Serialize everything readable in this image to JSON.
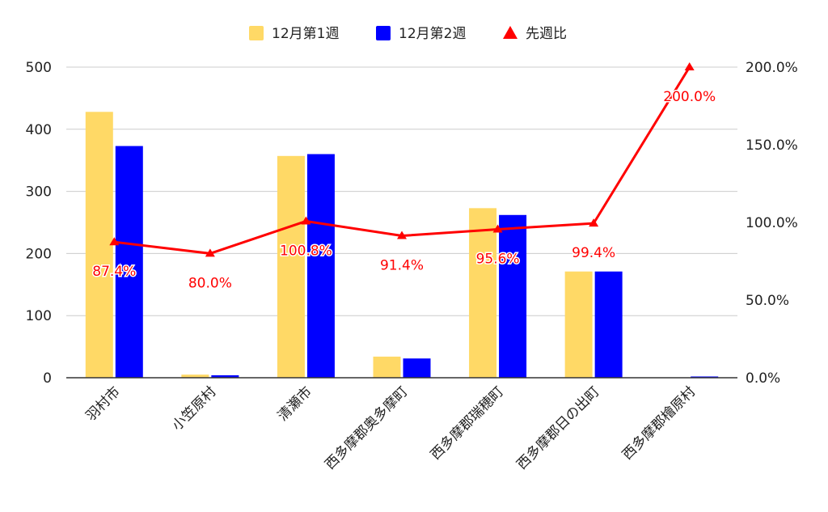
{
  "chart_data": {
    "type": "bar",
    "categories": [
      "羽村市",
      "小笠原村",
      "清瀬市",
      "西多摩郡奥多摩町",
      "西多摩郡瑞穂町",
      "西多摩郡日の出町",
      "西多摩郡檜原村"
    ],
    "series": [
      {
        "name": "12月第1週",
        "kind": "bar",
        "axis": "left",
        "color": "#FFD966",
        "values": [
          428,
          5,
          357,
          34,
          273,
          171,
          0
        ]
      },
      {
        "name": "12月第2週",
        "kind": "bar",
        "axis": "left",
        "color": "#0000FF",
        "values": [
          373,
          4,
          360,
          31,
          262,
          171,
          2
        ]
      },
      {
        "name": "先週比",
        "kind": "line",
        "axis": "right",
        "color": "#FF0000",
        "values": [
          87.4,
          80.0,
          100.8,
          91.4,
          95.6,
          99.4,
          200.0
        ],
        "labels": [
          "87.4%",
          "80.0%",
          "100.8%",
          "91.4%",
          "95.6%",
          "99.4%",
          "200.0%"
        ]
      }
    ],
    "y_left": {
      "ticks": [
        "0",
        "100",
        "200",
        "300",
        "400",
        "500"
      ],
      "range": [
        0,
        500
      ]
    },
    "y_right": {
      "ticks": [
        "0.0%",
        "50.0%",
        "100.0%",
        "150.0%",
        "200.0%"
      ],
      "range": [
        0,
        200
      ]
    },
    "legend": {
      "position": "top"
    },
    "grid": true,
    "title": "",
    "xlabel": "",
    "ylabel": ""
  }
}
